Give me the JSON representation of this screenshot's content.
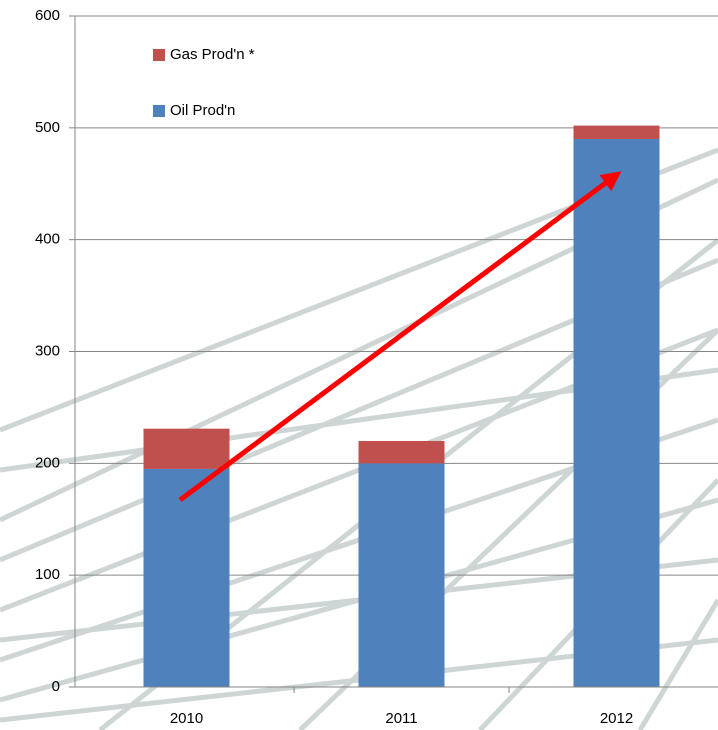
{
  "chart_data": {
    "type": "stacked_bar",
    "categories": [
      "2010",
      "2011",
      "2012"
    ],
    "series": [
      {
        "name": "Oil Prod'n",
        "color": "#4f81bd",
        "values": [
          195,
          200,
          490
        ]
      },
      {
        "name": "Gas Prod'n *",
        "color": "#c0504d",
        "values": [
          36,
          20,
          12
        ]
      }
    ],
    "ylim": [
      0,
      600
    ],
    "yticks": [
      0,
      100,
      200,
      300,
      400,
      500,
      600
    ],
    "grid": true
  }
}
